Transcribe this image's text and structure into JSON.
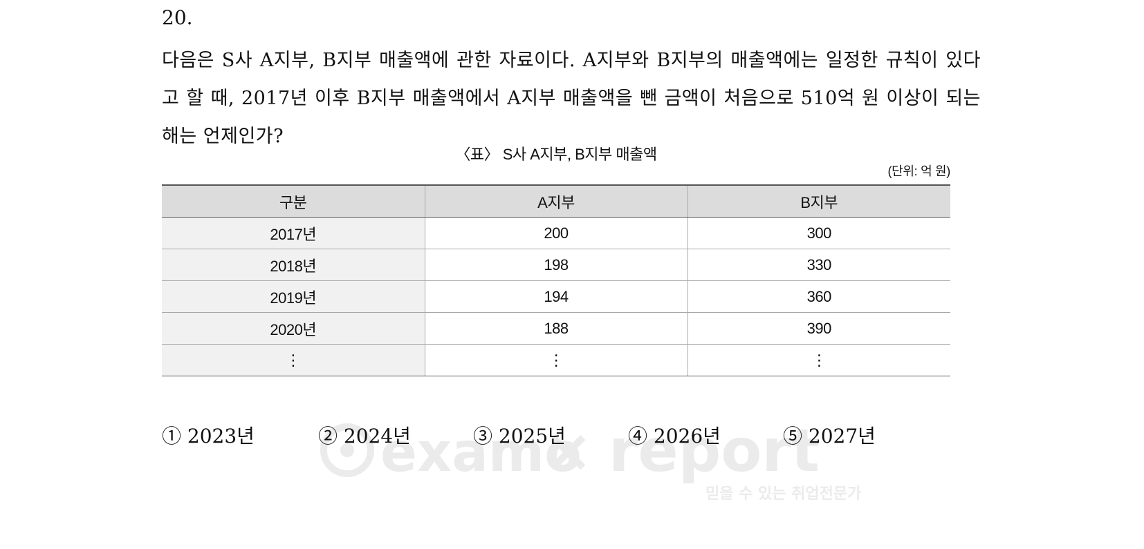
{
  "question": {
    "number": "20.",
    "text": "다음은 S사 A지부, B지부 매출액에 관한 자료이다. A지부와 B지부의 매출액에는 일정한 규칙이 있다고 할 때, 2017년 이후 B지부 매출액에서 A지부 매출액을 뺀 금액이 처음으로 510억 원 이상이 되는 해는 언제인가?"
  },
  "table": {
    "title": "〈표〉 S사 A지부, B지부 매출액",
    "unit": "(단위: 억 원)",
    "headers": [
      "구분",
      "A지부",
      "B지부"
    ],
    "rows": [
      [
        "2017년",
        "200",
        "300"
      ],
      [
        "2018년",
        "198",
        "330"
      ],
      [
        "2019년",
        "194",
        "360"
      ],
      [
        "2020년",
        "188",
        "390"
      ],
      [
        "⋮",
        "⋮",
        "⋮"
      ]
    ]
  },
  "choices": [
    "① 2023년",
    "② 2024년",
    "③ 2025년",
    "④ 2026년",
    "⑤ 2027년"
  ],
  "watermark": {
    "brand_left": "examo",
    "separator": "×",
    "brand_right": "report",
    "tagline": "믿을 수 있는 취업전문가",
    "color": "#ebebeb"
  }
}
